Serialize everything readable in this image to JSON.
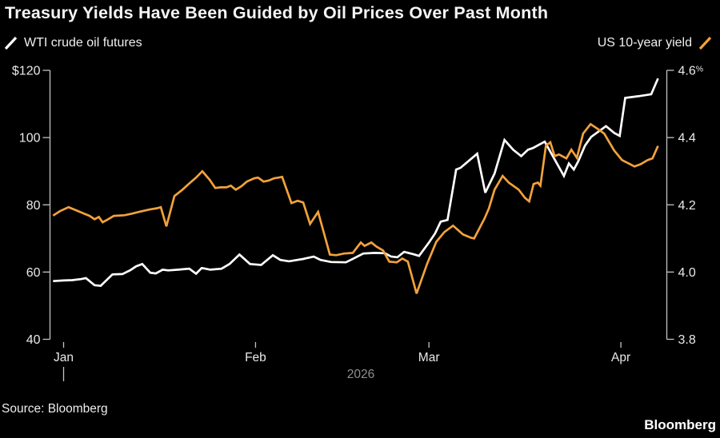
{
  "header": {
    "title": "Treasury Yields Have Been Guided by Oil Prices Over Past Month"
  },
  "legend": {
    "left": {
      "label": "WTI crude oil futures",
      "color": "#ffffff"
    },
    "right": {
      "label": "US 10-year yield",
      "color": "#f2a23b"
    }
  },
  "footer": {
    "source": "Source: Bloomberg",
    "logo": "Bloomberg"
  },
  "colors": {
    "background": "#000000",
    "axis": "#c4c4c4",
    "tick_label": "#e9e9e9",
    "year_label": "#8f8f8f",
    "wti_line": "#ffffff",
    "yield_line": "#f2a23b"
  },
  "chart_data": {
    "type": "line",
    "title": "Treasury Yields Have Been Guided by Oil Prices Over Past Month",
    "x_unit": "days since Jan 1, 2026",
    "grid": false,
    "legend_position": "top",
    "x_axis": {
      "months": [
        {
          "label": "Jan",
          "day": 0
        },
        {
          "label": "Feb",
          "day": 31
        },
        {
          "label": "Mar",
          "day": 59
        },
        {
          "label": "Apr",
          "day": 90
        }
      ],
      "year_label": "2026",
      "year_tick_day": 0,
      "x_range_days": [
        -1.7,
        96.5
      ]
    },
    "left_axis": {
      "series": "WTI crude oil futures",
      "range": [
        40,
        120
      ],
      "ticks": [
        {
          "label": "$120",
          "value": 120
        },
        {
          "label": "100",
          "value": 100
        },
        {
          "label": "80",
          "value": 80
        },
        {
          "label": "60",
          "value": 60
        },
        {
          "label": "40",
          "value": 40
        }
      ]
    },
    "right_axis": {
      "series": "US 10-year yield",
      "range": [
        3.8,
        4.6
      ],
      "ticks": [
        {
          "label": "4.6%",
          "value": 4.6
        },
        {
          "label": "4.4",
          "value": 4.4
        },
        {
          "label": "4.2",
          "value": 4.2
        },
        {
          "label": "4.0",
          "value": 4.0
        },
        {
          "label": "3.8",
          "value": 3.8
        }
      ]
    },
    "series": [
      {
        "name": "WTI crude oil futures",
        "axis": "left",
        "color": "#ffffff",
        "points": [
          [
            -1.7,
            57.3
          ],
          [
            0,
            57.5
          ],
          [
            1.4,
            57.6
          ],
          [
            2.8,
            57.9
          ],
          [
            3.6,
            58.2
          ],
          [
            5,
            56.1
          ],
          [
            6,
            55.9
          ],
          [
            7.9,
            59.3
          ],
          [
            9.5,
            59.4
          ],
          [
            10.8,
            60.6
          ],
          [
            11.7,
            61.7
          ],
          [
            12.7,
            62.4
          ],
          [
            14,
            59.8
          ],
          [
            14.9,
            59.6
          ],
          [
            16,
            60.7
          ],
          [
            16.9,
            60.5
          ],
          [
            18.5,
            60.7
          ],
          [
            20.3,
            61.0
          ],
          [
            21.4,
            59.5
          ],
          [
            22.3,
            61.2
          ],
          [
            23.7,
            60.7
          ],
          [
            25.5,
            61.0
          ],
          [
            26.8,
            62.4
          ],
          [
            28.4,
            65.2
          ],
          [
            30.1,
            62.4
          ],
          [
            31.9,
            62.1
          ],
          [
            33.8,
            65.0
          ],
          [
            35,
            63.6
          ],
          [
            36.4,
            63.2
          ],
          [
            38.7,
            63.9
          ],
          [
            40.4,
            64.6
          ],
          [
            41.5,
            63.6
          ],
          [
            43.2,
            63.0
          ],
          [
            45.6,
            62.9
          ],
          [
            46.8,
            64.0
          ],
          [
            48.4,
            65.5
          ],
          [
            50.3,
            65.7
          ],
          [
            51.9,
            65.6
          ],
          [
            52.9,
            64.6
          ],
          [
            53.9,
            64.4
          ],
          [
            55,
            66.0
          ],
          [
            56.5,
            65.3
          ],
          [
            57.4,
            64.8
          ],
          [
            59,
            68.8
          ],
          [
            60,
            71.5
          ],
          [
            60.9,
            75.0
          ],
          [
            62,
            75.5
          ],
          [
            63.4,
            90.5
          ],
          [
            64.1,
            91.0
          ],
          [
            66.8,
            95.2
          ],
          [
            68.1,
            83.6
          ],
          [
            69.6,
            89.3
          ],
          [
            71.2,
            99.3
          ],
          [
            72.6,
            96.4
          ],
          [
            73.9,
            94.5
          ],
          [
            75,
            96.4
          ],
          [
            75.8,
            96.9
          ],
          [
            77.7,
            98.8
          ],
          [
            80.8,
            88.6
          ],
          [
            81.6,
            92.3
          ],
          [
            82.4,
            90.5
          ],
          [
            83.1,
            92.9
          ],
          [
            84.2,
            97.6
          ],
          [
            85.2,
            100.2
          ],
          [
            87.6,
            103.4
          ],
          [
            88.9,
            101.4
          ],
          [
            89.8,
            100.5
          ],
          [
            90.7,
            111.8
          ],
          [
            92.8,
            112.3
          ],
          [
            94.9,
            112.9
          ],
          [
            96,
            117.6
          ]
        ]
      },
      {
        "name": "US 10-year yield",
        "axis": "right",
        "color": "#f2a23b",
        "points": [
          [
            -1.7,
            4.168
          ],
          [
            -0.6,
            4.181
          ],
          [
            0.8,
            4.193
          ],
          [
            2.1,
            4.183
          ],
          [
            3.3,
            4.174
          ],
          [
            4.2,
            4.167
          ],
          [
            5,
            4.157
          ],
          [
            5.7,
            4.164
          ],
          [
            6.3,
            4.148
          ],
          [
            7.2,
            4.157
          ],
          [
            8.1,
            4.167
          ],
          [
            9.8,
            4.169
          ],
          [
            11.1,
            4.174
          ],
          [
            12.2,
            4.179
          ],
          [
            13.9,
            4.186
          ],
          [
            15.1,
            4.19
          ],
          [
            15.7,
            4.193
          ],
          [
            16.6,
            4.136
          ],
          [
            17.9,
            4.226
          ],
          [
            19.2,
            4.245
          ],
          [
            20.2,
            4.262
          ],
          [
            21.4,
            4.281
          ],
          [
            22.4,
            4.3
          ],
          [
            23.6,
            4.274
          ],
          [
            24.5,
            4.25
          ],
          [
            25.4,
            4.252
          ],
          [
            26.3,
            4.252
          ],
          [
            27,
            4.257
          ],
          [
            27.8,
            4.245
          ],
          [
            28.7,
            4.255
          ],
          [
            29.6,
            4.269
          ],
          [
            30.8,
            4.279
          ],
          [
            31.4,
            4.281
          ],
          [
            32.3,
            4.269
          ],
          [
            33.1,
            4.272
          ],
          [
            34,
            4.279
          ],
          [
            34.7,
            4.281
          ],
          [
            35.3,
            4.283
          ],
          [
            35.7,
            4.262
          ],
          [
            36.8,
            4.205
          ],
          [
            37.8,
            4.212
          ],
          [
            38.7,
            4.207
          ],
          [
            39.8,
            4.143
          ],
          [
            41.1,
            4.179
          ],
          [
            42.1,
            4.112
          ],
          [
            43,
            4.052
          ],
          [
            44,
            4.05
          ],
          [
            45.3,
            4.055
          ],
          [
            46.7,
            4.057
          ],
          [
            48,
            4.088
          ],
          [
            48.6,
            4.078
          ],
          [
            49.7,
            4.088
          ],
          [
            50.5,
            4.076
          ],
          [
            51.6,
            4.064
          ],
          [
            52.6,
            4.031
          ],
          [
            53.8,
            4.029
          ],
          [
            54.7,
            4.04
          ],
          [
            55.6,
            4.031
          ],
          [
            57,
            3.936
          ],
          [
            58.7,
            4.024
          ],
          [
            60.2,
            4.09
          ],
          [
            61.5,
            4.119
          ],
          [
            62.9,
            4.138
          ],
          [
            64.5,
            4.112
          ],
          [
            65.8,
            4.102
          ],
          [
            66.3,
            4.1
          ],
          [
            68,
            4.16
          ],
          [
            68.7,
            4.19
          ],
          [
            69.6,
            4.245
          ],
          [
            70.9,
            4.286
          ],
          [
            71.9,
            4.266
          ],
          [
            73.5,
            4.245
          ],
          [
            74.5,
            4.221
          ],
          [
            75.2,
            4.21
          ],
          [
            75.9,
            4.262
          ],
          [
            76.6,
            4.266
          ],
          [
            77,
            4.257
          ],
          [
            77.9,
            4.376
          ],
          [
            78.6,
            4.386
          ],
          [
            79.3,
            4.345
          ],
          [
            80,
            4.35
          ],
          [
            81.2,
            4.338
          ],
          [
            82,
            4.364
          ],
          [
            82.9,
            4.34
          ],
          [
            83.9,
            4.412
          ],
          [
            85.1,
            4.44
          ],
          [
            86.4,
            4.424
          ],
          [
            87.3,
            4.412
          ],
          [
            88.9,
            4.362
          ],
          [
            90.2,
            4.333
          ],
          [
            91.5,
            4.321
          ],
          [
            92.2,
            4.314
          ],
          [
            93.2,
            4.321
          ],
          [
            94.3,
            4.333
          ],
          [
            95.1,
            4.338
          ],
          [
            96,
            4.375
          ]
        ]
      }
    ]
  }
}
